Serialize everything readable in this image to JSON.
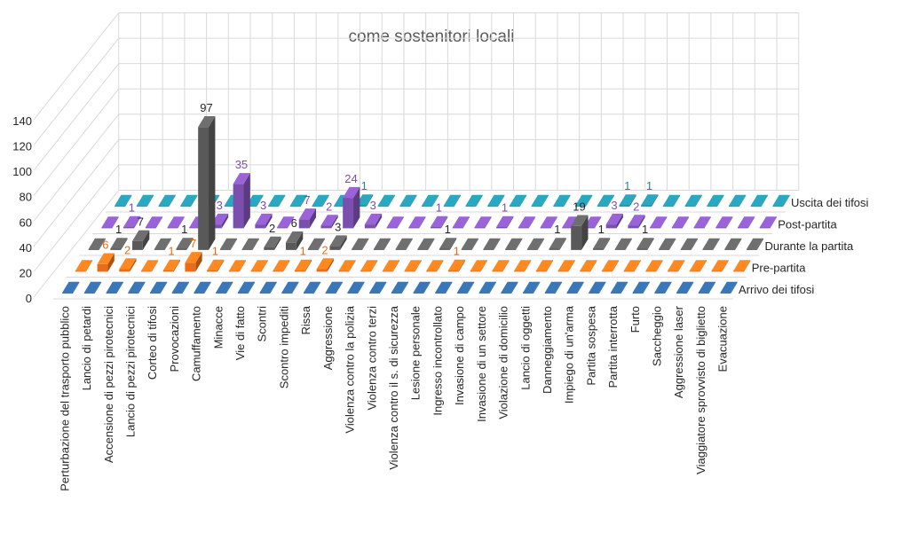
{
  "chart_data": {
    "type": "bar",
    "variant": "3d-column",
    "title": "come sostenitori locali",
    "ylim": [
      0,
      140
    ],
    "yticks": [
      0,
      20,
      40,
      60,
      80,
      100,
      120,
      140
    ],
    "categories": [
      "Perturbazione del trasporto pubblico",
      "Lancio di petardi",
      "Accensione di pezzi pirotecnici",
      "Lancio di pezzi pirotecnici",
      "Corteo di tifosi",
      "Provocazioni",
      "Camuffamento",
      "Minacce",
      "Vie di fatto",
      "Scontri",
      "Scontro impediti",
      "Rissa",
      "Aggressione",
      "Violenza contro la polizia",
      "Violenza contro terzi",
      "Violenza contro il s. di sicurezza",
      "Lesione personale",
      "Ingresso incontrollato",
      "Invasione di campo",
      "Invasione di un settore",
      "Violazione di domicilio",
      "Lancio di oggetti",
      "Danneggiamento",
      "Impiego di un'arma",
      "Partita sospesa",
      "Partita interrotta",
      "Furto",
      "Saccheggio",
      "Aggressione laser",
      "Viaggiatore sprovvisto di biglietto",
      "Evacuazione"
    ],
    "series": [
      {
        "name": "Arrivo dei tifosi",
        "color": "#2e5f93",
        "values": [
          0,
          0,
          0,
          0,
          0,
          0,
          0,
          0,
          0,
          0,
          0,
          0,
          0,
          0,
          0,
          0,
          0,
          0,
          0,
          0,
          0,
          0,
          0,
          0,
          0,
          0,
          0,
          0,
          0,
          0,
          0
        ]
      },
      {
        "name": "Pre-partita",
        "color": "#e86d1a",
        "values": [
          0,
          6,
          2,
          0,
          1,
          7,
          1,
          0,
          0,
          0,
          1,
          2,
          0,
          0,
          0,
          0,
          0,
          1,
          0,
          0,
          0,
          0,
          0,
          0,
          0,
          0,
          0,
          0,
          0,
          0,
          0
        ]
      },
      {
        "name": "Durante la partita",
        "color": "#595959",
        "values": [
          0,
          1,
          7,
          0,
          1,
          97,
          0,
          0,
          2,
          6,
          0,
          3,
          0,
          0,
          0,
          0,
          1,
          0,
          0,
          0,
          0,
          1,
          19,
          1,
          0,
          1,
          0,
          0,
          0,
          0,
          0
        ]
      },
      {
        "name": "Post-partita",
        "color": "#7b4fae",
        "values": [
          0,
          1,
          0,
          0,
          0,
          3,
          35,
          3,
          0,
          7,
          2,
          24,
          3,
          0,
          0,
          1,
          0,
          0,
          1,
          0,
          0,
          0,
          0,
          3,
          2,
          0,
          0,
          0,
          0,
          0,
          0
        ]
      },
      {
        "name": "Uscita dei tifosi",
        "color": "#21869b",
        "values": [
          0,
          0,
          0,
          0,
          0,
          0,
          0,
          0,
          0,
          0,
          0,
          1,
          0,
          0,
          0,
          0,
          0,
          0,
          0,
          0,
          0,
          0,
          0,
          1,
          1,
          0,
          0,
          0,
          0,
          0,
          0
        ]
      }
    ],
    "legend": "series labels on the right depth axis"
  }
}
